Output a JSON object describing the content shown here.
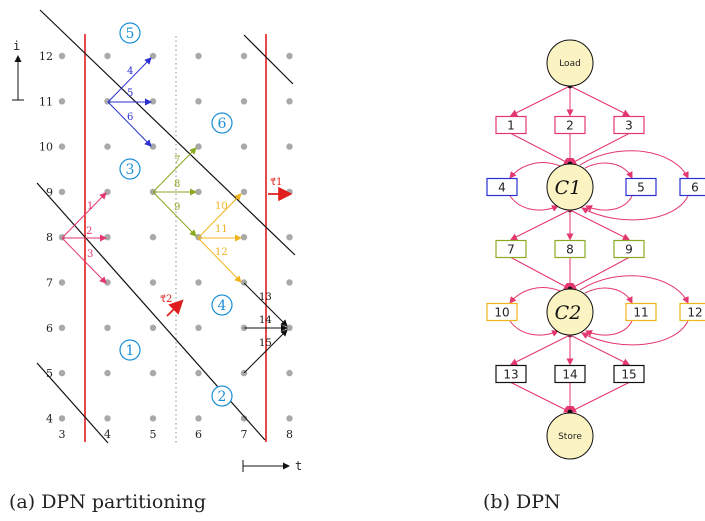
{
  "colors": {
    "pink": "#e4376f",
    "blue": "#2a2fd1",
    "green": "#8aaa22",
    "orange": "#f2b41c",
    "black": "#111111",
    "red": "#e01c1c",
    "region": "#1a8fd6",
    "node_fill": "#fbf4c2",
    "dot": "#a9a9a9"
  },
  "partition": {
    "i_axis_label": "i",
    "t_axis_label": "t",
    "i_values": [
      "4",
      "5",
      "6",
      "7",
      "8",
      "9",
      "10",
      "11",
      "12"
    ],
    "t_values": [
      "3",
      "4",
      "5",
      "6",
      "7",
      "8"
    ],
    "regions": [
      "1",
      "2",
      "3",
      "4",
      "5",
      "6"
    ],
    "tau1": "τ⃗1",
    "tau2": "τ⃗2",
    "edge_groups": [
      {
        "color": "pink",
        "labels": [
          "1",
          "2",
          "3"
        ]
      },
      {
        "color": "blue",
        "labels": [
          "4",
          "5",
          "6"
        ]
      },
      {
        "color": "green",
        "labels": [
          "7",
          "8",
          "9"
        ]
      },
      {
        "color": "orange",
        "labels": [
          "10",
          "11",
          "12"
        ]
      },
      {
        "color": "black",
        "labels": [
          "13",
          "14",
          "15"
        ]
      }
    ]
  },
  "dpn": {
    "load": "Load",
    "store": "Store",
    "c1": "C1",
    "c2": "C2",
    "stages": [
      {
        "color": "pink",
        "labels": [
          "1",
          "2",
          "3"
        ]
      },
      {
        "color": "blue",
        "labels": [
          "4",
          "5",
          "6"
        ]
      },
      {
        "color": "green",
        "labels": [
          "7",
          "8",
          "9"
        ]
      },
      {
        "color": "orange",
        "labels": [
          "10",
          "11",
          "12"
        ]
      },
      {
        "color": "black",
        "labels": [
          "13",
          "14",
          "15"
        ]
      }
    ]
  },
  "captions": {
    "a": "(a) DPN partitioning",
    "b": "(b) DPN"
  }
}
